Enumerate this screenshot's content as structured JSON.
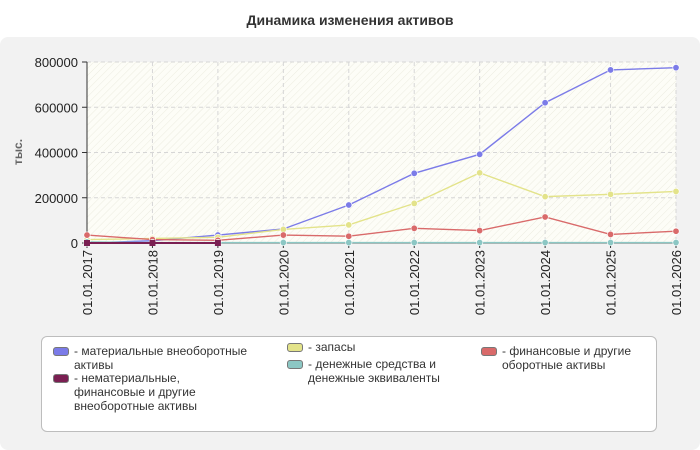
{
  "chart_data": {
    "type": "line",
    "title": "Динамика изменения активов",
    "ylabel": "тыс.",
    "xlabel": "",
    "ylim": [
      0,
      800000
    ],
    "y_ticks": [
      "0",
      "200000",
      "400000",
      "600000",
      "800000"
    ],
    "categories": [
      "01.01.2017",
      "01.01.2018",
      "01.01.2019",
      "01.01.2020",
      "01.01.2021",
      "01.01.2022",
      "01.01.2023",
      "01.01.2024",
      "01.01.2025",
      "01.01.2026"
    ],
    "grid": true,
    "legend_position": "bottom",
    "series": [
      {
        "name": "материальные внеоборотные активы",
        "color": "#7b7be8",
        "values": [
          0,
          10000,
          35000,
          62000,
          168000,
          308000,
          392000,
          620000,
          765000,
          775000
        ]
      },
      {
        "name": "запасы",
        "color": "#e3e38a",
        "values": [
          15000,
          20000,
          25000,
          60000,
          80000,
          175000,
          310000,
          205000,
          215000,
          228000
        ]
      },
      {
        "name": "финансовые и другие оборотные активы",
        "color": "#d96a6a",
        "values": [
          35000,
          15000,
          12000,
          35000,
          30000,
          65000,
          55000,
          115000,
          38000,
          52000
        ]
      },
      {
        "name": "нематериальные, финансовые и другие внеоборотные активы",
        "color": "#7a1f52",
        "values": [
          0,
          0,
          0,
          null,
          null,
          null,
          null,
          null,
          null,
          null
        ]
      },
      {
        "name": "денежные средства и денежные эквиваленты",
        "color": "#8cc7c4",
        "values": [
          5000,
          2000,
          2000,
          2000,
          2000,
          2000,
          2000,
          2000,
          2000,
          2000
        ]
      }
    ]
  },
  "legend": {
    "items": [
      {
        "label": "материальные внеоборотные активы",
        "color": "#7b7be8"
      },
      {
        "label": "запасы",
        "color": "#e3e38a"
      },
      {
        "label": "финансовые и другие оборотные активы",
        "color": "#d96a6a"
      },
      {
        "label": "нематериальные, финансовые и другие внеоборотные активы",
        "color": "#7a1f52"
      },
      {
        "label": "денежные средства и денежные эквиваленты",
        "color": "#8cc7c4"
      }
    ]
  }
}
